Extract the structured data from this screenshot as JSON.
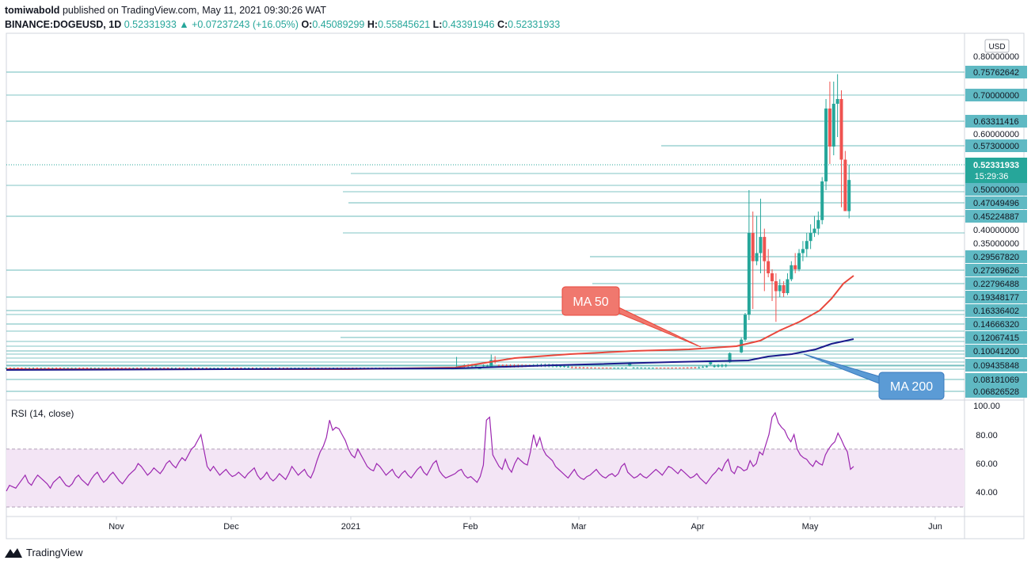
{
  "header": {
    "publisher": "tomiwabold",
    "published_text": "published on TradingView.com, May 11, 2021 09:30:26 WAT",
    "symbol": "BINANCE:DOGEUSD, 1D",
    "last": "0.52331933",
    "change": "+0.07237243 (+16.05%)",
    "o_label": "O:",
    "o": "0.45089299",
    "h_label": "H:",
    "h": "0.55845621",
    "l_label": "L:",
    "l": "0.43391946",
    "c_label": "C:",
    "c": "0.52331933"
  },
  "footer": {
    "brand": "TradingView"
  },
  "colors": {
    "up": "#26a69a",
    "down": "#ef5350",
    "ma50": "#e8473c",
    "ma200": "#1a1a8c",
    "rsi": "#9c27b0",
    "rsi_band": "#f3e5f5",
    "level": "#3aa5a5",
    "label_bg": "#5fb9c3"
  },
  "chart_data": [
    {
      "type": "candlestick",
      "title": "",
      "currency": "USD",
      "y_axis_ticks": [
        "0.80000000",
        "0.70000000",
        "0.60000000",
        "0.50000000",
        "0.40000000",
        "0.35000000"
      ],
      "x_axis_labels": [
        "Nov",
        "Dec",
        "2021",
        "Feb",
        "Mar",
        "Apr",
        "May",
        "Jun"
      ],
      "last_price_label": "0.52331933",
      "countdown": "15:29:36",
      "price_levels": [
        "0.75762642",
        "0.63311416",
        "0.57300000",
        "0.47049496",
        "0.45224887",
        "0.29567820",
        "0.27269626",
        "0.22796488",
        "0.19348177",
        "0.16336402",
        "0.14666320",
        "0.12067415",
        "0.10041200",
        "0.09435848",
        "0.08181069",
        "0.06826528"
      ],
      "indicators": [
        {
          "name": "MA 50",
          "annotation": "MA 50"
        },
        {
          "name": "MA 200",
          "annotation": "MA 200"
        }
      ],
      "candles_mid": [
        [
          "2021-01-28",
          0.012,
          0.035,
          0.01,
          0.034
        ],
        [
          "2021-01-29",
          0.034,
          0.078,
          0.03,
          0.052
        ],
        [
          "2021-02-04",
          0.04,
          0.05,
          0.036,
          0.048
        ],
        [
          "2021-02-07",
          0.048,
          0.084,
          0.047,
          0.07
        ],
        [
          "2021-02-08",
          0.07,
          0.08,
          0.06,
          0.065
        ],
        [
          "2021-03-15",
          0.055,
          0.064,
          0.053,
          0.062
        ],
        [
          "2021-04-05",
          0.059,
          0.066,
          0.057,
          0.064
        ],
        [
          "2021-04-10",
          0.064,
          0.09,
          0.062,
          0.088
        ],
        [
          "2021-04-13",
          0.09,
          0.13,
          0.088,
          0.125
        ],
        [
          "2021-04-14",
          0.125,
          0.2,
          0.12,
          0.195
        ],
        [
          "2021-04-15",
          0.195,
          0.5,
          0.18,
          0.4
        ],
        [
          "2021-04-16",
          0.4,
          0.45,
          0.21,
          0.33
        ],
        [
          "2021-04-17",
          0.33,
          0.44,
          0.32,
          0.35
        ],
        [
          "2021-04-18",
          0.35,
          0.48,
          0.3,
          0.39
        ],
        [
          "2021-04-19",
          0.39,
          0.41,
          0.255,
          0.33
        ],
        [
          "2021-04-20",
          0.33,
          0.36,
          0.29,
          0.3
        ],
        [
          "2021-04-21",
          0.3,
          0.31,
          0.23,
          0.28
        ],
        [
          "2021-04-22",
          0.28,
          0.3,
          0.175,
          0.255
        ],
        [
          "2021-04-23",
          0.255,
          0.285,
          0.24,
          0.27
        ],
        [
          "2021-04-24",
          0.27,
          0.28,
          0.24,
          0.25
        ],
        [
          "2021-04-25",
          0.25,
          0.3,
          0.245,
          0.285
        ],
        [
          "2021-04-26",
          0.285,
          0.33,
          0.28,
          0.32
        ],
        [
          "2021-04-27",
          0.32,
          0.35,
          0.3,
          0.31
        ],
        [
          "2021-04-28",
          0.31,
          0.36,
          0.305,
          0.35
        ],
        [
          "2021-04-29",
          0.35,
          0.38,
          0.33,
          0.36
        ],
        [
          "2021-04-30",
          0.36,
          0.4,
          0.34,
          0.38
        ],
        [
          "2021-05-01",
          0.38,
          0.42,
          0.36,
          0.4
        ],
        [
          "2021-05-02",
          0.4,
          0.44,
          0.39,
          0.41
        ],
        [
          "2021-05-03",
          0.41,
          0.45,
          0.395,
          0.43
        ],
        [
          "2021-05-04",
          0.43,
          0.53,
          0.42,
          0.52
        ],
        [
          "2021-05-05",
          0.52,
          0.7,
          0.5,
          0.68
        ],
        [
          "2021-05-06",
          0.68,
          0.74,
          0.56,
          0.6
        ],
        [
          "2021-05-07",
          0.6,
          0.74,
          0.58,
          0.69
        ],
        [
          "2021-05-08",
          0.69,
          0.757,
          0.62,
          0.7
        ],
        [
          "2021-05-09",
          0.7,
          0.72,
          0.46,
          0.57
        ],
        [
          "2021-05-10",
          0.57,
          0.59,
          0.47,
          0.451
        ],
        [
          "2021-05-11",
          0.45089299,
          0.55845621,
          0.43391946,
          0.52331933
        ]
      ]
    },
    {
      "type": "line",
      "title": "RSI (14, close)",
      "y_axis_ticks": [
        "100.00",
        "80.00",
        "60.00",
        "40.00"
      ],
      "band": [
        30,
        70
      ],
      "series": [
        {
          "name": "RSI (14, close)",
          "values": [
            41,
            45,
            44,
            43,
            46,
            49,
            52,
            47,
            45,
            49,
            52,
            50,
            48,
            46,
            43,
            47,
            49,
            51,
            48,
            45,
            44,
            46,
            50,
            52,
            49,
            47,
            45,
            49,
            52,
            54,
            50,
            47,
            49,
            52,
            54,
            51,
            48,
            46,
            49,
            52,
            54,
            56,
            60,
            58,
            55,
            52,
            54,
            57,
            55,
            53,
            56,
            60,
            62,
            59,
            57,
            61,
            64,
            62,
            66,
            70,
            72,
            76,
            80,
            69,
            58,
            55,
            58,
            55,
            52,
            54,
            56,
            53,
            51,
            52,
            54,
            52,
            50,
            53,
            55,
            57,
            52,
            49,
            51,
            54,
            50,
            48,
            50,
            53,
            51,
            49,
            53,
            58,
            55,
            52,
            54,
            56,
            52,
            50,
            55,
            62,
            68,
            72,
            78,
            90,
            83,
            85,
            84,
            80,
            76,
            70,
            66,
            64,
            70,
            66,
            62,
            58,
            56,
            55,
            60,
            58,
            55,
            52,
            54,
            56,
            52,
            50,
            53,
            55,
            52,
            50,
            53,
            56,
            58,
            54,
            52,
            56,
            60,
            62,
            55,
            52,
            50,
            51,
            52,
            53,
            55,
            56,
            52,
            50,
            51,
            49,
            47,
            51,
            59,
            90,
            92,
            66,
            62,
            58,
            56,
            63,
            57,
            54,
            60,
            64,
            62,
            60,
            59,
            68,
            80,
            72,
            78,
            70,
            66,
            64,
            62,
            58,
            56,
            54,
            52,
            50,
            53,
            56,
            52,
            50,
            49,
            51,
            52,
            54,
            56,
            53,
            51,
            50,
            52,
            53,
            51,
            53,
            58,
            60,
            54,
            52,
            50,
            51,
            53,
            51,
            50,
            52,
            54,
            56,
            54,
            52,
            55,
            58,
            57,
            55,
            53,
            56,
            54,
            52,
            50,
            51,
            53,
            50,
            48,
            46,
            49,
            52,
            54,
            57,
            55,
            60,
            63,
            55,
            53,
            58,
            57,
            55,
            56,
            62,
            58,
            60,
            68,
            66,
            73,
            80,
            92,
            95,
            88,
            85,
            83,
            78,
            75,
            80,
            70,
            66,
            64,
            63,
            60,
            58,
            62,
            60,
            59,
            66,
            70,
            73,
            75,
            81,
            77,
            72,
            68,
            56,
            58
          ]
        }
      ]
    }
  ]
}
